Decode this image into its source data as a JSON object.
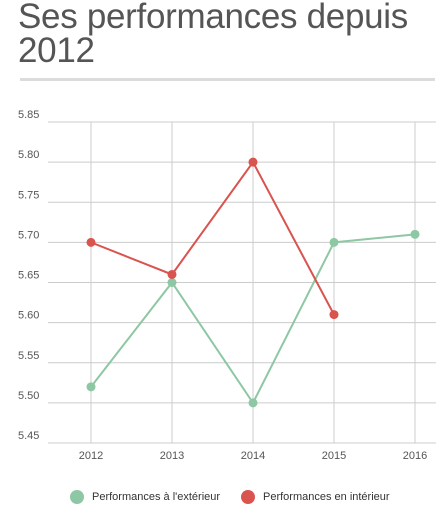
{
  "title": "Ses performances depuis 2012",
  "chart_data": {
    "type": "line",
    "x": [
      "2012",
      "2013",
      "2014",
      "2015",
      "2016"
    ],
    "ylim": [
      5.45,
      5.85
    ],
    "yticks": [
      "5.45",
      "5.50",
      "5.55",
      "5.60",
      "5.65",
      "5.70",
      "5.75",
      "5.80",
      "5.85"
    ],
    "grid": true,
    "legend_position": "bottom",
    "series": [
      {
        "name": "Performances à l'extérieur",
        "color": "#8ec7a3",
        "values": [
          5.52,
          5.65,
          5.5,
          5.7,
          5.71
        ]
      },
      {
        "name": "Performances en intérieur",
        "color": "#d9534f",
        "values": [
          5.7,
          5.66,
          5.8,
          5.61,
          null
        ]
      }
    ]
  }
}
